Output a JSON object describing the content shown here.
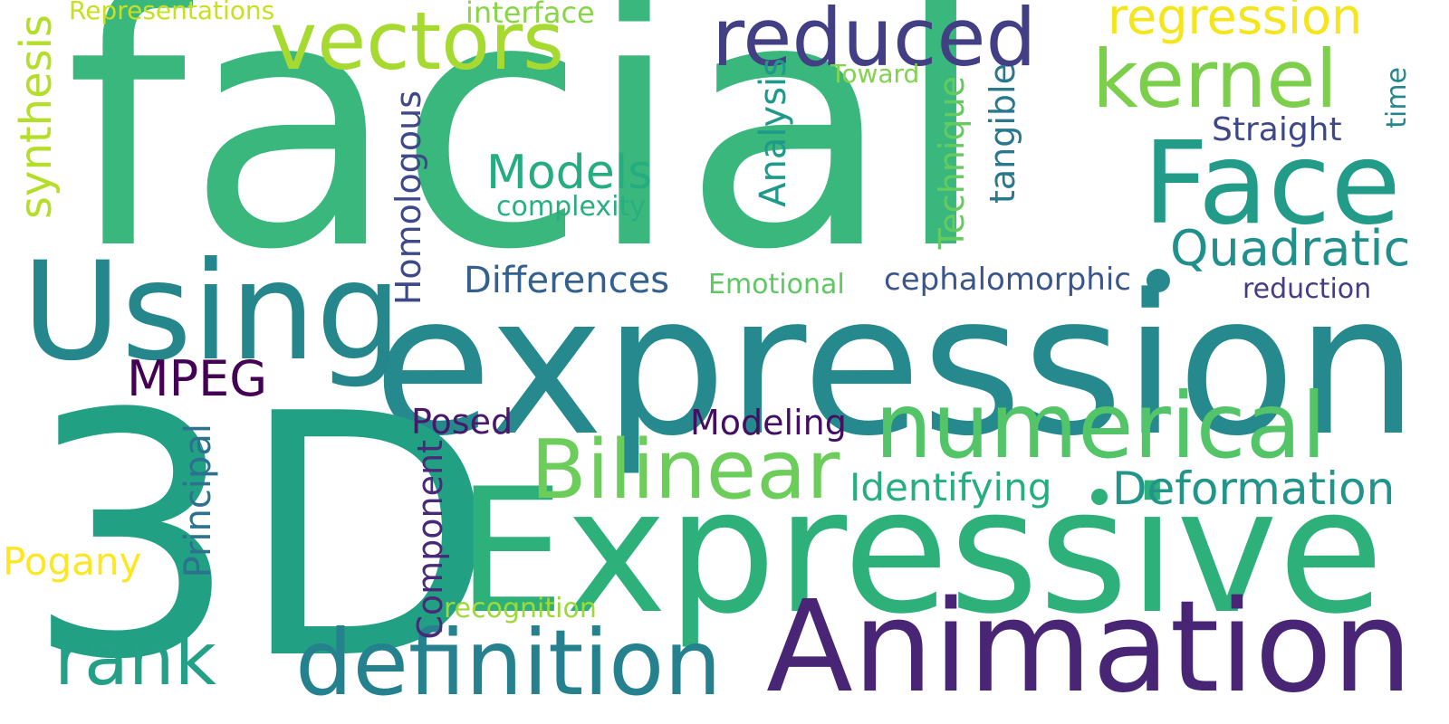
{
  "words": {
    "facial": "facial",
    "expression": "expression",
    "three_d": "3D",
    "expressive": "Expressive",
    "using": "Using",
    "animation": "Animation",
    "face": "Face",
    "vectors": "vectors",
    "reduced": "reduced",
    "kernel": "kernel",
    "numerical": "numerical",
    "bilinear": "Bilinear",
    "definition": "definition",
    "rank": "rank",
    "regression": "regression",
    "quadratic": "Quadratic",
    "deformation": "Deformation",
    "models": "Models",
    "mpeg": "MPEG",
    "identifying": "Identifying",
    "differences": "Differences",
    "modeling": "Modeling",
    "posed": "Posed",
    "straight": "Straight",
    "cephalomorphic": "cephalomorphic",
    "pogany": "Pogany",
    "complexity": "complexity",
    "emotional": "Emotional",
    "reduction": "reduction",
    "recognition": "recognition",
    "interface": "interface",
    "representations": "Representations",
    "toward": "Toward",
    "synthesis": "synthesis",
    "homologous": "Homologous",
    "analysis": "Analysis",
    "technique": "Technique",
    "tangible": "tangible",
    "time": "time",
    "principal": "Principal",
    "component": "Component"
  },
  "colors": {
    "background": "#ffffff",
    "palette": "viridis"
  }
}
